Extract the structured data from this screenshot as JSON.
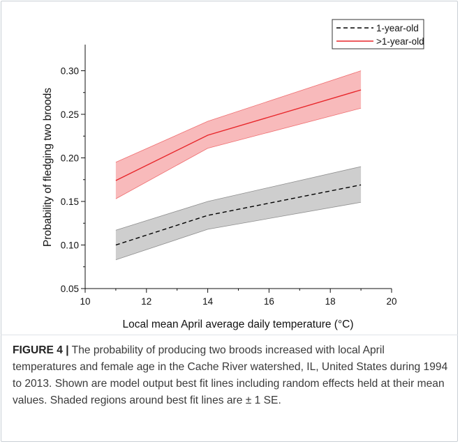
{
  "chart_data": {
    "type": "line",
    "xlabel": "Local mean April average daily temperature (°C)",
    "ylabel": "Probability of fledging two broods",
    "xlim": [
      10,
      20
    ],
    "ylim": [
      0.05,
      0.33
    ],
    "x_ticks": [
      "10",
      "12",
      "14",
      "16",
      "18",
      "20"
    ],
    "y_ticks": [
      "0.05",
      "0.10",
      "0.15",
      "0.20",
      "0.25",
      "0.30"
    ],
    "legend_position": "top-right",
    "series": [
      {
        "name": "1-year-old",
        "style": "dashed",
        "line_color": "#000000",
        "band_color": "#bdbdbd",
        "x": [
          11,
          14,
          19
        ],
        "y": [
          0.1,
          0.134,
          0.169
        ],
        "lower": [
          0.083,
          0.118,
          0.149
        ],
        "upper": [
          0.117,
          0.15,
          0.19
        ]
      },
      {
        "name": ">1-year-old",
        "style": "solid",
        "line_color": "#e8262a",
        "band_color": "#f5a3a4",
        "x": [
          11,
          14,
          19
        ],
        "y": [
          0.174,
          0.226,
          0.278
        ],
        "lower": [
          0.153,
          0.211,
          0.257
        ],
        "upper": [
          0.195,
          0.242,
          0.3
        ]
      }
    ]
  },
  "caption": {
    "label": "FIGURE 4 |",
    "text": " The probability of producing two broods increased with local April temperatures and female age in the Cache River watershed, IL, United States during 1994 to 2013. Shown are model output best fit lines including random effects held at their mean values. Shaded regions around best fit lines are ± 1 SE."
  }
}
